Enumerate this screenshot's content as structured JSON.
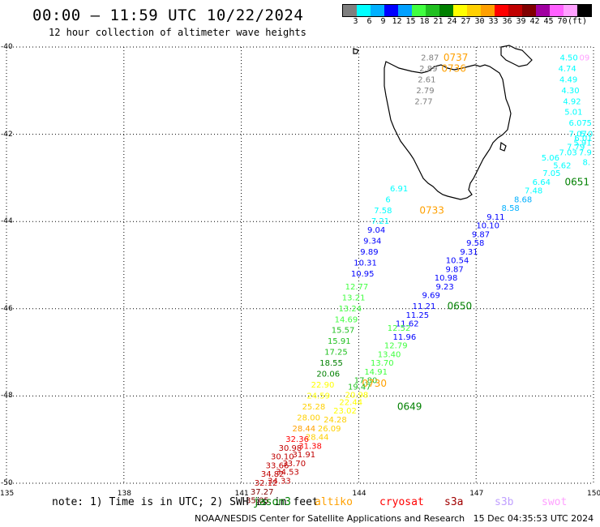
{
  "header": {
    "title": "00:00 — 11:59 UTC 10/22/2024",
    "subtitle": "12 hour collection of altimeter wave heights"
  },
  "colorbar": {
    "colors": [
      "#7f7f7f",
      "#00ffff",
      "#00b0ff",
      "#0000ff",
      "#00a0ff",
      "#40ff40",
      "#20c020",
      "#008000",
      "#ffff00",
      "#ffd000",
      "#ffa000",
      "#ff0000",
      "#c00000",
      "#800000",
      "#a000a0",
      "#ff60ff",
      "#ffa0ff",
      "#000000"
    ],
    "labels": [
      "3",
      "6",
      "9",
      "12",
      "15",
      "18",
      "21",
      "24",
      "27",
      "30",
      "33",
      "36",
      "39",
      "42",
      "45",
      "70",
      "(ft)"
    ]
  },
  "axes": {
    "lat_labels": [
      "-40",
      "-42",
      "-44",
      "-46",
      "-48",
      "-50"
    ],
    "lon_labels": [
      "135",
      "138",
      "141",
      "144",
      "147",
      "150"
    ]
  },
  "chart_data": {
    "type": "scatter",
    "xlim": [
      135,
      150
    ],
    "ylim": [
      -50,
      -40
    ],
    "points": [
      {
        "lon": 145.82,
        "lat": -40.25,
        "v": "2.87",
        "c": "#7f7f7f"
      },
      {
        "lon": 145.78,
        "lat": -40.5,
        "v": "2.89",
        "c": "#7f7f7f"
      },
      {
        "lon": 145.74,
        "lat": -40.75,
        "v": "2.61",
        "c": "#7f7f7f"
      },
      {
        "lon": 145.7,
        "lat": -41.0,
        "v": "2.79",
        "c": "#7f7f7f"
      },
      {
        "lon": 145.66,
        "lat": -41.25,
        "v": "2.77",
        "c": "#7f7f7f"
      },
      {
        "lon": 146.48,
        "lat": -40.25,
        "v": "0737",
        "c": "#ffa000"
      },
      {
        "lon": 146.43,
        "lat": -40.5,
        "v": "0736",
        "c": "#ffa000"
      },
      {
        "lon": 149.37,
        "lat": -40.25,
        "v": "4.50",
        "c": "#00ffff"
      },
      {
        "lon": 149.77,
        "lat": -40.25,
        "v": "09",
        "c": "#ffa0ff"
      },
      {
        "lon": 149.33,
        "lat": -40.5,
        "v": "4.74",
        "c": "#00ffff"
      },
      {
        "lon": 149.36,
        "lat": -40.75,
        "v": "4.49",
        "c": "#00ffff"
      },
      {
        "lon": 149.41,
        "lat": -41.0,
        "v": "4.30",
        "c": "#00ffff"
      },
      {
        "lon": 149.45,
        "lat": -41.25,
        "v": "4.92",
        "c": "#00ffff"
      },
      {
        "lon": 149.49,
        "lat": -41.5,
        "v": "5.01",
        "c": "#00ffff"
      },
      {
        "lon": 149.6,
        "lat": -41.75,
        "v": "6.07",
        "c": "#00ffff"
      },
      {
        "lon": 149.89,
        "lat": -41.75,
        "v": "5",
        "c": "#00ffff"
      },
      {
        "lon": 149.6,
        "lat": -42.0,
        "v": "7.07",
        "c": "#00ffff"
      },
      {
        "lon": 149.82,
        "lat": -42.0,
        "v": "5.0",
        "c": "#00ffff"
      },
      {
        "lon": 149.74,
        "lat": -42.1,
        "v": "6.01",
        "c": "#00ffff"
      },
      {
        "lon": 149.72,
        "lat": -42.2,
        "v": "5.91",
        "c": "#00ffff"
      },
      {
        "lon": 149.55,
        "lat": -42.3,
        "v": "7.79",
        "c": "#00ffff"
      },
      {
        "lon": 149.35,
        "lat": -42.43,
        "v": "7.03",
        "c": "#00ffff"
      },
      {
        "lon": 149.79,
        "lat": -42.43,
        "v": "7.9",
        "c": "#00ffff"
      },
      {
        "lon": 148.9,
        "lat": -42.55,
        "v": "5.06",
        "c": "#00ffff"
      },
      {
        "lon": 149.82,
        "lat": -42.65,
        "v": "8.",
        "c": "#00ffff"
      },
      {
        "lon": 149.2,
        "lat": -42.72,
        "v": "5.62",
        "c": "#00ffff"
      },
      {
        "lon": 148.93,
        "lat": -42.9,
        "v": "7.05",
        "c": "#00ffff"
      },
      {
        "lon": 148.67,
        "lat": -43.1,
        "v": "6.64",
        "c": "#00ffff"
      },
      {
        "lon": 149.58,
        "lat": -43.1,
        "v": "0651",
        "c": "#008000"
      },
      {
        "lon": 148.47,
        "lat": -43.3,
        "v": "7.48",
        "c": "#00ffff"
      },
      {
        "lon": 148.2,
        "lat": -43.5,
        "v": "8.68",
        "c": "#00b0ff"
      },
      {
        "lon": 147.88,
        "lat": -43.7,
        "v": "8.58",
        "c": "#00b0ff"
      },
      {
        "lon": 147.5,
        "lat": -43.9,
        "v": "9.11",
        "c": "#0000ff"
      },
      {
        "lon": 147.3,
        "lat": -44.1,
        "v": "10.10",
        "c": "#0000ff"
      },
      {
        "lon": 147.12,
        "lat": -44.3,
        "v": "9.87",
        "c": "#0000ff"
      },
      {
        "lon": 146.98,
        "lat": -44.5,
        "v": "9.58",
        "c": "#0000ff"
      },
      {
        "lon": 146.82,
        "lat": -44.7,
        "v": "9.31",
        "c": "#0000ff"
      },
      {
        "lon": 146.52,
        "lat": -44.9,
        "v": "10.54",
        "c": "#0000ff"
      },
      {
        "lon": 146.45,
        "lat": -45.1,
        "v": "9.87",
        "c": "#0000ff"
      },
      {
        "lon": 146.23,
        "lat": -45.3,
        "v": "10.98",
        "c": "#0000ff"
      },
      {
        "lon": 146.2,
        "lat": -45.5,
        "v": "9.23",
        "c": "#0000ff"
      },
      {
        "lon": 145.85,
        "lat": -45.7,
        "v": "9.69",
        "c": "#0000ff"
      },
      {
        "lon": 145.67,
        "lat": -45.95,
        "v": "11.21",
        "c": "#0000ff"
      },
      {
        "lon": 146.58,
        "lat": -45.95,
        "v": "0650",
        "c": "#008000"
      },
      {
        "lon": 145.5,
        "lat": -46.15,
        "v": "11.25",
        "c": "#0000ff"
      },
      {
        "lon": 145.24,
        "lat": -46.35,
        "v": "11.62",
        "c": "#0000ff"
      },
      {
        "lon": 145.03,
        "lat": -46.45,
        "v": "12.52",
        "c": "#40ff40"
      },
      {
        "lon": 145.17,
        "lat": -46.65,
        "v": "11.96",
        "c": "#0000ff"
      },
      {
        "lon": 144.95,
        "lat": -46.85,
        "v": "12.79",
        "c": "#40ff40"
      },
      {
        "lon": 144.78,
        "lat": -47.05,
        "v": "13.40",
        "c": "#40ff40"
      },
      {
        "lon": 144.6,
        "lat": -47.25,
        "v": "13.70",
        "c": "#40ff40"
      },
      {
        "lon": 144.44,
        "lat": -47.45,
        "v": "14.91",
        "c": "#40ff40"
      },
      {
        "lon": 144.18,
        "lat": -47.65,
        "v": "17.80",
        "c": "#20c020"
      },
      {
        "lon": 144.4,
        "lat": -47.72,
        "v": "0730",
        "c": "#ffa000"
      },
      {
        "lon": 144.02,
        "lat": -47.8,
        "v": "19.47",
        "c": "#20c020"
      },
      {
        "lon": 143.95,
        "lat": -47.98,
        "v": "20.98",
        "c": "#ffff00"
      },
      {
        "lon": 143.8,
        "lat": -48.15,
        "v": "22.44",
        "c": "#ffff00"
      },
      {
        "lon": 143.65,
        "lat": -48.35,
        "v": "23.02",
        "c": "#ffff00"
      },
      {
        "lon": 143.4,
        "lat": -48.55,
        "v": "24.28",
        "c": "#ffd000"
      },
      {
        "lon": 143.25,
        "lat": -48.75,
        "v": "26.09",
        "c": "#ffd000"
      },
      {
        "lon": 142.94,
        "lat": -48.95,
        "v": "28.44",
        "c": "#ffd000"
      },
      {
        "lon": 142.76,
        "lat": -49.15,
        "v": "31.38",
        "c": "#ff0000"
      },
      {
        "lon": 142.6,
        "lat": -49.35,
        "v": "31.91",
        "c": "#c00000"
      },
      {
        "lon": 142.35,
        "lat": -49.55,
        "v": "33.70",
        "c": "#c00000"
      },
      {
        "lon": 142.18,
        "lat": -49.75,
        "v": "34.53",
        "c": "#c00000"
      },
      {
        "lon": 141.97,
        "lat": -49.95,
        "v": "34.33",
        "c": "#c00000"
      },
      {
        "lon": 144.55,
        "lat": -44.0,
        "v": "7.21",
        "c": "#00ffff"
      },
      {
        "lon": 144.62,
        "lat": -43.75,
        "v": "7.58",
        "c": "#00ffff"
      },
      {
        "lon": 144.75,
        "lat": -43.5,
        "v": "6",
        "c": "#00ffff"
      },
      {
        "lon": 145.03,
        "lat": -43.25,
        "v": "6.91",
        "c": "#00ffff"
      },
      {
        "lon": 145.87,
        "lat": -43.75,
        "v": "0733",
        "c": "#ffa000"
      },
      {
        "lon": 144.45,
        "lat": -44.2,
        "v": "9.04",
        "c": "#0000ff"
      },
      {
        "lon": 144.35,
        "lat": -44.45,
        "v": "9.34",
        "c": "#0000ff"
      },
      {
        "lon": 144.27,
        "lat": -44.7,
        "v": "9.89",
        "c": "#0000ff"
      },
      {
        "lon": 144.17,
        "lat": -44.95,
        "v": "10.31",
        "c": "#0000ff"
      },
      {
        "lon": 144.1,
        "lat": -45.2,
        "v": "10.95",
        "c": "#0000ff"
      },
      {
        "lon": 143.95,
        "lat": -45.5,
        "v": "12.77",
        "c": "#40ff40"
      },
      {
        "lon": 143.87,
        "lat": -45.75,
        "v": "13.21",
        "c": "#40ff40"
      },
      {
        "lon": 143.78,
        "lat": -46.0,
        "v": "13.24",
        "c": "#40ff40"
      },
      {
        "lon": 143.68,
        "lat": -46.25,
        "v": "14.69",
        "c": "#40ff40"
      },
      {
        "lon": 143.6,
        "lat": -46.5,
        "v": "15.57",
        "c": "#20c020"
      },
      {
        "lon": 143.5,
        "lat": -46.75,
        "v": "15.91",
        "c": "#20c020"
      },
      {
        "lon": 143.42,
        "lat": -47.0,
        "v": "17.25",
        "c": "#20c020"
      },
      {
        "lon": 143.3,
        "lat": -47.25,
        "v": "18.55",
        "c": "#008000"
      },
      {
        "lon": 143.22,
        "lat": -47.5,
        "v": "20.06",
        "c": "#008000"
      },
      {
        "lon": 143.08,
        "lat": -47.75,
        "v": "22.90",
        "c": "#ffff00"
      },
      {
        "lon": 142.97,
        "lat": -48.0,
        "v": "24.59",
        "c": "#ffff00"
      },
      {
        "lon": 142.85,
        "lat": -48.25,
        "v": "25.28",
        "c": "#ffd000"
      },
      {
        "lon": 142.72,
        "lat": -48.5,
        "v": "28.00",
        "c": "#ffd000"
      },
      {
        "lon": 142.6,
        "lat": -48.75,
        "v": "28.44",
        "c": "#ffa000"
      },
      {
        "lon": 142.43,
        "lat": -49.0,
        "v": "32.36",
        "c": "#ff0000"
      },
      {
        "lon": 142.25,
        "lat": -49.2,
        "v": "30.98",
        "c": "#c00000"
      },
      {
        "lon": 142.05,
        "lat": -49.4,
        "v": "30.10",
        "c": "#c00000"
      },
      {
        "lon": 141.92,
        "lat": -49.6,
        "v": "33.66",
        "c": "#c00000"
      },
      {
        "lon": 141.8,
        "lat": -49.8,
        "v": "34.82",
        "c": "#c00000"
      },
      {
        "lon": 141.63,
        "lat": -50.0,
        "v": "32.12",
        "c": "#c00000"
      },
      {
        "lon": 141.53,
        "lat": -50.2,
        "v": "37.27",
        "c": "#800000"
      },
      {
        "lon": 141.41,
        "lat": -50.4,
        "v": "35.05",
        "c": "#800000"
      },
      {
        "lon": 145.3,
        "lat": -48.25,
        "v": "0649",
        "c": "#008000"
      }
    ]
  },
  "note": {
    "text": "note: 1) Time is in UTC; 2) SWH is in feet"
  },
  "legend": {
    "items": [
      {
        "name": "jason3",
        "color": "#008000"
      },
      {
        "name": "altiko",
        "color": "#ffa000"
      },
      {
        "name": "cryosat",
        "color": "#ff0000"
      },
      {
        "name": "s3a",
        "color": "#a00000"
      },
      {
        "name": "s3b",
        "color": "#c0a0ff"
      },
      {
        "name": "swot",
        "color": "#ffa0ff"
      }
    ]
  },
  "footer": {
    "credit": "NOAA/NESDIS Center for Satellite Applications and Research",
    "timestamp": "15 Dec 04:35:53 UTC 2024"
  }
}
